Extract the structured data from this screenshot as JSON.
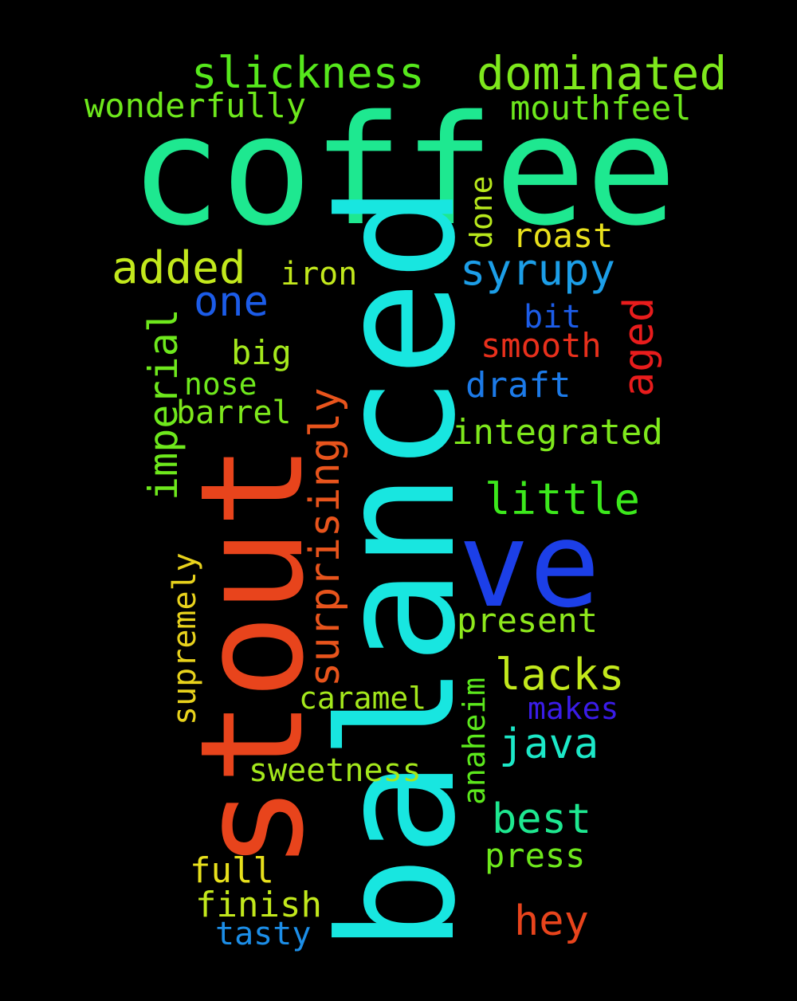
{
  "background": "#000000",
  "words": [
    {
      "text": "coffee",
      "color": "#1ee890"
    },
    {
      "text": "balanced",
      "color": "#18e6e0"
    },
    {
      "text": "stout",
      "color": "#e8441c"
    },
    {
      "text": "ve",
      "color": "#1c3fe8"
    },
    {
      "text": "dominated",
      "color": "#7ee81c"
    },
    {
      "text": "slickness",
      "color": "#56e81c"
    },
    {
      "text": "wonderfully",
      "color": "#6ee81c"
    },
    {
      "text": "mouthfeel",
      "color": "#6ee81c"
    },
    {
      "text": "done",
      "color": "#b8e81c"
    },
    {
      "text": "roast",
      "color": "#e8e01c"
    },
    {
      "text": "syrupy",
      "color": "#1c9ee8"
    },
    {
      "text": "added",
      "color": "#c2e81c"
    },
    {
      "text": "iron",
      "color": "#c2e81c"
    },
    {
      "text": "one",
      "color": "#1c5ce8"
    },
    {
      "text": "imperial",
      "color": "#6ee81c"
    },
    {
      "text": "bit",
      "color": "#1c5ce8"
    },
    {
      "text": "aged",
      "color": "#e81c1c"
    },
    {
      "text": "smooth",
      "color": "#e8301c"
    },
    {
      "text": "big",
      "color": "#a4e81c"
    },
    {
      "text": "nose",
      "color": "#6ee81c"
    },
    {
      "text": "surprisingly",
      "color": "#e8541c"
    },
    {
      "text": "draft",
      "color": "#1c7ae8"
    },
    {
      "text": "barrel",
      "color": "#7ee81c"
    },
    {
      "text": "integrated",
      "color": "#7ee81c"
    },
    {
      "text": "little",
      "color": "#3ce81c"
    },
    {
      "text": "supremely",
      "color": "#e8d21c"
    },
    {
      "text": "present",
      "color": "#8ee81c"
    },
    {
      "text": "lacks",
      "color": "#c2e81c"
    },
    {
      "text": "anaheim",
      "color": "#5ce81c"
    },
    {
      "text": "caramel",
      "color": "#a4e81c"
    },
    {
      "text": "makes",
      "color": "#3a1ce8"
    },
    {
      "text": "java",
      "color": "#1ce8c8"
    },
    {
      "text": "sweetness",
      "color": "#a4e81c"
    },
    {
      "text": "best",
      "color": "#1ee890"
    },
    {
      "text": "press",
      "color": "#6ee81c"
    },
    {
      "text": "full",
      "color": "#e8e01c"
    },
    {
      "text": "finish",
      "color": "#c2e81c"
    },
    {
      "text": "hey",
      "color": "#e8441c"
    },
    {
      "text": "tasty",
      "color": "#1c8ee8"
    }
  ]
}
